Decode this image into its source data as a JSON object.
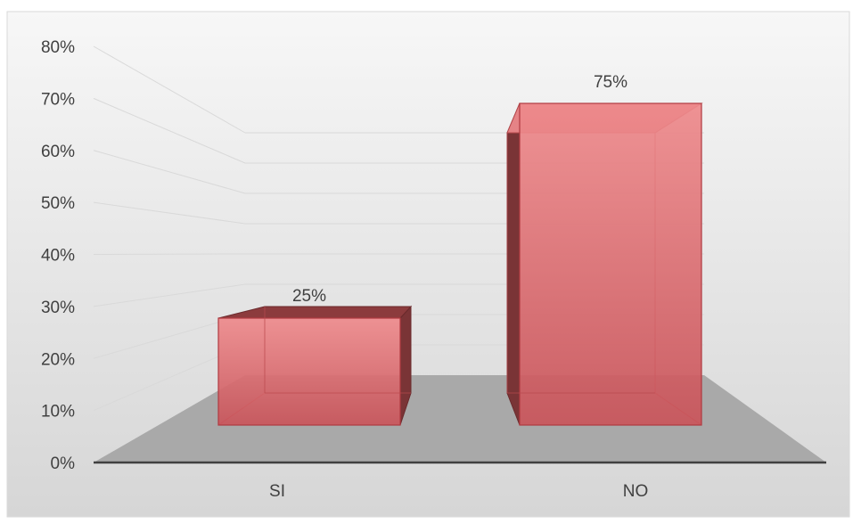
{
  "chart_data": {
    "type": "bar",
    "categories": [
      "SI",
      "NO"
    ],
    "values": [
      25,
      75
    ],
    "data_labels": [
      "25%",
      "75%"
    ],
    "ylim": [
      0,
      80
    ],
    "yticks": [
      0,
      10,
      20,
      30,
      40,
      50,
      60,
      70,
      80
    ],
    "ytick_labels": [
      "0%",
      "10%",
      "20%",
      "30%",
      "40%",
      "50%",
      "60%",
      "70%",
      "80%"
    ],
    "grid": true,
    "legend": "none",
    "style": "3d-clustered-column",
    "colors": {
      "bar_front": "#c9545a",
      "bar_side": "#7a3436",
      "bar_top": "#8c3b3d",
      "floor": "#a9a9a9",
      "background_top": "#f7f7f7",
      "background_bottom": "#d6d6d6"
    }
  }
}
